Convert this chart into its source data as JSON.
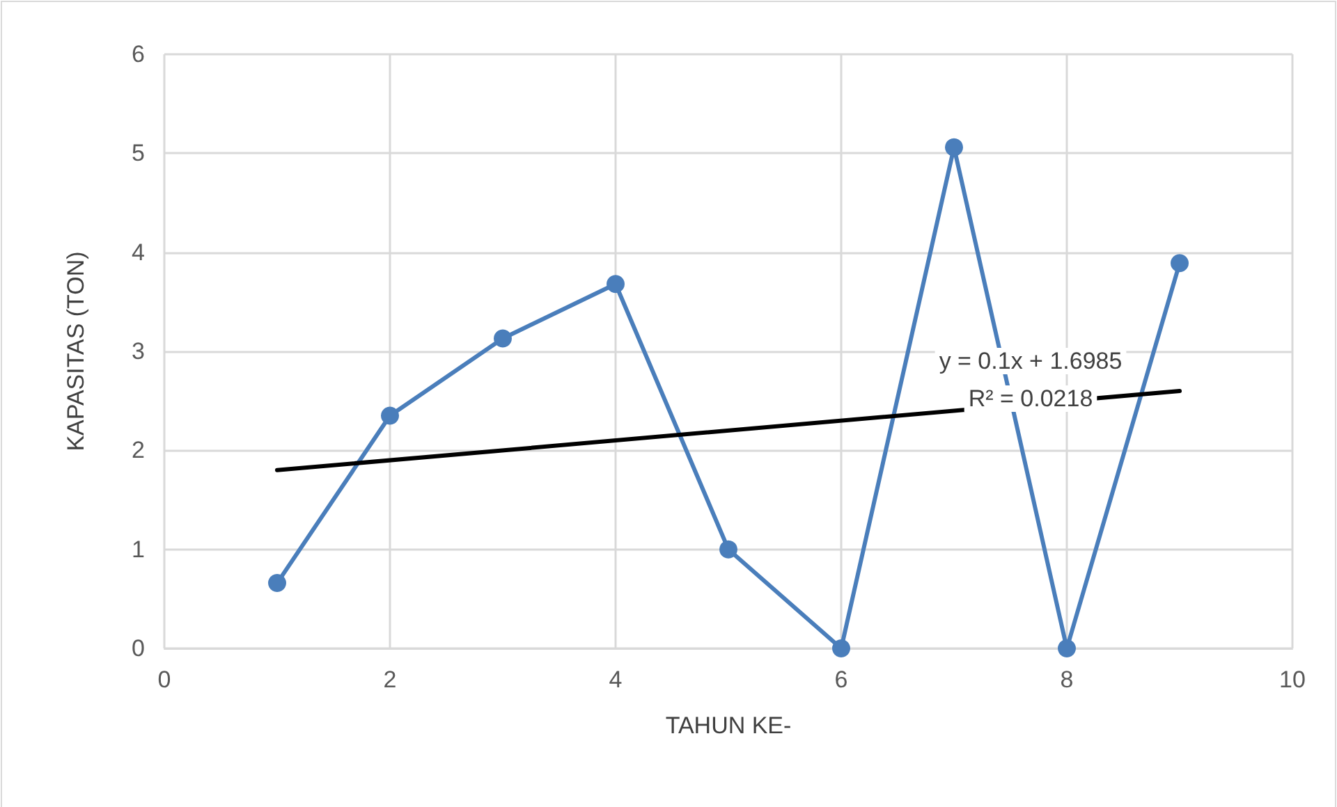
{
  "chart_data": {
    "type": "line",
    "xlabel": "TAHUN KE-",
    "ylabel": "KAPASITAS (TON)",
    "x": [
      1,
      2,
      3,
      4,
      5,
      6,
      7,
      8,
      9
    ],
    "series": [
      {
        "color": "#4a7ebb",
        "values": [
          0.66,
          2.35,
          3.13,
          3.68,
          1.0,
          0,
          5.06,
          0,
          3.89
        ],
        "marker": "circle"
      },
      {
        "type": "line",
        "color": "#000000",
        "x": [
          1,
          9
        ],
        "values": [
          1.8,
          2.6
        ],
        "marker": "none"
      }
    ],
    "annotations": [
      "y = 0.1x + 1.6985",
      "R² = 0.0218"
    ],
    "xlim": [
      0,
      10
    ],
    "xticks": [
      0,
      2,
      4,
      6,
      8,
      10
    ],
    "ylim": [
      0,
      6
    ],
    "yticks": [
      0,
      1,
      2,
      3,
      4,
      5,
      6
    ],
    "grid": true
  }
}
